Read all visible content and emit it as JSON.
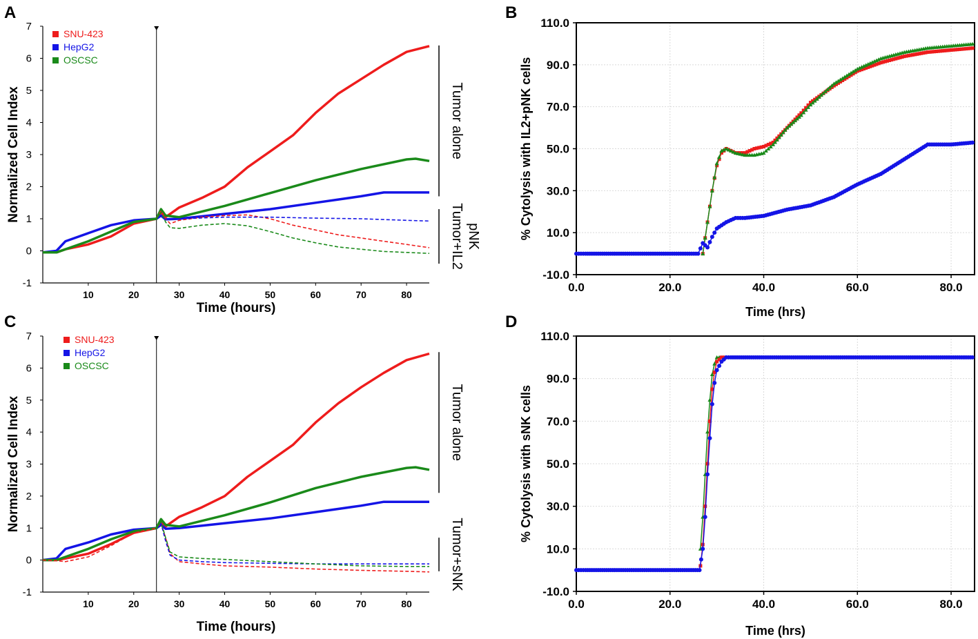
{
  "colors": {
    "red": "#ee1c1c",
    "blue": "#1414e6",
    "green": "#1a8a1a",
    "axis": "#000000",
    "grid": "#d9d9d9"
  },
  "chart_data": [
    {
      "panel": "A",
      "type": "line",
      "xlabel": "Time (hours)",
      "ylabel": "Normalized Cell Index",
      "xlim": [
        0,
        85
      ],
      "ylim": [
        -1,
        7
      ],
      "xticks": [
        10,
        20,
        30,
        40,
        50,
        60,
        70,
        80
      ],
      "yticks": [
        -1,
        0,
        1,
        2,
        3,
        4,
        5,
        6,
        7
      ],
      "marker_x": 25,
      "legend": [
        "SNU-423",
        "HepG2",
        "OSCSC"
      ],
      "brackets": [
        {
          "label": "Tumor alone",
          "y1": 6.4,
          "y2": 1.7
        },
        {
          "label": "Tumor+IL2 pNK",
          "lines": [
            "Tumor+IL2",
            "pNK"
          ],
          "y1": 1.3,
          "y2": -0.4
        }
      ],
      "series": [
        {
          "name": "SNU-423",
          "color": "red",
          "style": "solid",
          "x": [
            0,
            3,
            5,
            10,
            15,
            20,
            25,
            26,
            27,
            30,
            35,
            40,
            45,
            50,
            55,
            60,
            65,
            70,
            75,
            80,
            85
          ],
          "y": [
            -0.05,
            -0.05,
            0.05,
            0.2,
            0.45,
            0.85,
            1.0,
            1.2,
            1.05,
            1.35,
            1.65,
            2.0,
            2.6,
            3.1,
            3.6,
            4.3,
            4.9,
            5.35,
            5.8,
            6.2,
            6.38
          ]
        },
        {
          "name": "HepG2",
          "color": "blue",
          "style": "solid",
          "x": [
            0,
            3,
            5,
            10,
            15,
            20,
            25,
            26,
            27,
            30,
            40,
            50,
            60,
            70,
            75,
            80,
            85
          ],
          "y": [
            -0.05,
            0.0,
            0.3,
            0.55,
            0.8,
            0.95,
            1.0,
            1.1,
            0.98,
            1.0,
            1.15,
            1.3,
            1.5,
            1.7,
            1.82,
            1.82,
            1.82
          ]
        },
        {
          "name": "OSCSC",
          "color": "green",
          "style": "solid",
          "x": [
            0,
            3,
            5,
            10,
            15,
            20,
            25,
            26,
            27,
            30,
            40,
            50,
            60,
            70,
            80,
            82,
            85
          ],
          "y": [
            -0.05,
            -0.05,
            0.05,
            0.3,
            0.6,
            0.9,
            1.0,
            1.3,
            1.1,
            1.05,
            1.4,
            1.8,
            2.2,
            2.55,
            2.85,
            2.87,
            2.8
          ]
        },
        {
          "name": "SNU-423 + IL2 pNK",
          "color": "red",
          "style": "dashed",
          "x": [
            25,
            26,
            27,
            28,
            30,
            35,
            40,
            45,
            50,
            55,
            60,
            65,
            70,
            75,
            80,
            85
          ],
          "y": [
            1.0,
            1.25,
            1.0,
            0.85,
            0.95,
            1.05,
            1.1,
            1.12,
            1.0,
            0.8,
            0.65,
            0.5,
            0.4,
            0.3,
            0.2,
            0.1
          ]
        },
        {
          "name": "HepG2 + IL2 pNK",
          "color": "blue",
          "style": "dashed",
          "x": [
            25,
            26,
            27,
            30,
            40,
            50,
            60,
            70,
            80,
            85
          ],
          "y": [
            1.0,
            1.1,
            1.0,
            1.0,
            1.05,
            1.05,
            1.02,
            1.0,
            0.95,
            0.93
          ]
        },
        {
          "name": "OSCSC + IL2 pNK",
          "color": "green",
          "style": "dashed",
          "x": [
            25,
            26,
            27,
            28,
            30,
            35,
            40,
            45,
            50,
            55,
            60,
            65,
            70,
            75,
            80,
            85
          ],
          "y": [
            1.0,
            1.2,
            0.9,
            0.72,
            0.7,
            0.8,
            0.85,
            0.78,
            0.6,
            0.4,
            0.25,
            0.12,
            0.05,
            -0.02,
            -0.05,
            -0.08
          ]
        }
      ]
    },
    {
      "panel": "B",
      "type": "line",
      "xlabel": "Time (hrs)",
      "ylabel": "% Cytolysis with IL2+pNK cells",
      "xlim": [
        0,
        85
      ],
      "ylim": [
        -10,
        110
      ],
      "xticks": [
        "0.0",
        "20.0",
        "40.0",
        "60.0",
        "80.0"
      ],
      "yticks": [
        "-10.0",
        "10.0",
        "30.0",
        "50.0",
        "70.0",
        "90.0",
        "110.0"
      ],
      "series": [
        {
          "name": "SNU-423",
          "color": "red",
          "style": "markers",
          "x": [
            27,
            28,
            29,
            30,
            31,
            32,
            34,
            36,
            38,
            40,
            42,
            45,
            48,
            50,
            55,
            60,
            65,
            70,
            75,
            80,
            85
          ],
          "y": [
            0,
            15,
            30,
            42,
            48,
            50,
            48,
            48,
            50,
            51,
            53,
            60,
            67,
            72,
            80,
            87,
            91,
            94,
            96,
            97,
            98
          ]
        },
        {
          "name": "OSCSC",
          "color": "green",
          "style": "markers",
          "x": [
            27,
            28,
            29,
            30,
            31,
            32,
            34,
            36,
            38,
            40,
            42,
            45,
            48,
            50,
            55,
            60,
            65,
            70,
            75,
            80,
            85
          ],
          "y": [
            0,
            15,
            30,
            43,
            49,
            50,
            48,
            47,
            47,
            48,
            52,
            60,
            66,
            71,
            81,
            88,
            93,
            96,
            98,
            99,
            100
          ]
        },
        {
          "name": "HepG2",
          "color": "blue",
          "style": "markers",
          "x": [
            0,
            2,
            10,
            20,
            26,
            27,
            28,
            29,
            30,
            32,
            34,
            36,
            40,
            45,
            50,
            55,
            60,
            65,
            70,
            75,
            80,
            85
          ],
          "y": [
            0,
            0,
            0,
            0,
            0,
            5,
            3,
            8,
            12,
            15,
            17,
            17,
            18,
            21,
            23,
            27,
            33,
            38,
            45,
            52,
            52,
            53
          ]
        }
      ]
    },
    {
      "panel": "C",
      "type": "line",
      "xlabel": "Time (hours)",
      "ylabel": "Normalized Cell Index",
      "xlim": [
        0,
        85
      ],
      "ylim": [
        -1,
        7
      ],
      "xticks": [
        10,
        20,
        30,
        40,
        50,
        60,
        70,
        80
      ],
      "yticks": [
        -1,
        0,
        1,
        2,
        3,
        4,
        5,
        6,
        7
      ],
      "marker_x": 25,
      "legend": [
        "SNU-423",
        "HepG2",
        "OSCSC"
      ],
      "brackets": [
        {
          "label": "Tumor alone",
          "y1": 6.5,
          "y2": 2.1
        },
        {
          "label": "Tumor+sNK",
          "lines": [
            "Tumor+sNK"
          ],
          "y1": 0.7,
          "y2": -0.35
        }
      ],
      "series": [
        {
          "name": "SNU-423",
          "color": "red",
          "style": "solid",
          "x": [
            0,
            3,
            5,
            10,
            15,
            20,
            25,
            26,
            27,
            30,
            35,
            40,
            45,
            50,
            55,
            60,
            65,
            70,
            75,
            80,
            85
          ],
          "y": [
            0.0,
            0.0,
            0.05,
            0.2,
            0.5,
            0.85,
            1.0,
            1.2,
            1.05,
            1.35,
            1.65,
            2.0,
            2.6,
            3.1,
            3.6,
            4.3,
            4.9,
            5.4,
            5.85,
            6.25,
            6.45
          ]
        },
        {
          "name": "HepG2",
          "color": "blue",
          "style": "solid",
          "x": [
            0,
            3,
            5,
            10,
            15,
            20,
            25,
            26,
            27,
            30,
            40,
            50,
            60,
            70,
            75,
            80,
            85
          ],
          "y": [
            0.0,
            0.05,
            0.35,
            0.55,
            0.8,
            0.95,
            1.0,
            1.1,
            0.98,
            1.0,
            1.15,
            1.3,
            1.5,
            1.7,
            1.82,
            1.82,
            1.82
          ]
        },
        {
          "name": "OSCSC",
          "color": "green",
          "style": "solid",
          "x": [
            0,
            3,
            5,
            10,
            15,
            20,
            25,
            26,
            27,
            30,
            40,
            50,
            60,
            70,
            80,
            82,
            85
          ],
          "y": [
            0.0,
            0.0,
            0.1,
            0.35,
            0.65,
            0.9,
            1.0,
            1.28,
            1.1,
            1.05,
            1.4,
            1.8,
            2.25,
            2.6,
            2.88,
            2.9,
            2.82
          ]
        },
        {
          "name": "SNU-423 + sNK",
          "color": "red",
          "style": "dashed",
          "x": [
            0,
            3,
            5,
            10,
            15,
            20,
            25,
            26,
            27,
            28,
            30,
            35,
            40,
            50,
            60,
            70,
            80,
            85
          ],
          "y": [
            0.0,
            -0.02,
            -0.05,
            0.1,
            0.45,
            0.85,
            1.0,
            1.15,
            0.7,
            0.2,
            -0.05,
            -0.12,
            -0.18,
            -0.22,
            -0.28,
            -0.32,
            -0.35,
            -0.37
          ]
        },
        {
          "name": "HepG2 + sNK",
          "color": "blue",
          "style": "dashed",
          "x": [
            25,
            26,
            27,
            28,
            30,
            35,
            40,
            50,
            60,
            70,
            80,
            85
          ],
          "y": [
            1.0,
            1.15,
            0.6,
            0.15,
            0.0,
            -0.05,
            -0.08,
            -0.1,
            -0.12,
            -0.12,
            -0.12,
            -0.12
          ]
        },
        {
          "name": "OSCSC + sNK",
          "color": "green",
          "style": "dashed",
          "x": [
            25,
            26,
            27,
            28,
            30,
            35,
            40,
            50,
            60,
            70,
            80,
            85
          ],
          "y": [
            1.0,
            1.2,
            0.7,
            0.25,
            0.1,
            0.05,
            0.02,
            -0.05,
            -0.12,
            -0.18,
            -0.2,
            -0.2
          ]
        }
      ]
    },
    {
      "panel": "D",
      "type": "line",
      "xlabel": "Time (hrs)",
      "ylabel": "% Cytolysis with sNK cells",
      "xlim": [
        0,
        85
      ],
      "ylim": [
        -10,
        110
      ],
      "xticks": [
        "0.0",
        "20.0",
        "40.0",
        "60.0",
        "80.0"
      ],
      "yticks": [
        "-10.0",
        "10.0",
        "30.0",
        "50.0",
        "70.0",
        "90.0",
        "110.0"
      ],
      "series": [
        {
          "name": "OSCSC",
          "color": "green",
          "style": "markers",
          "x": [
            26.5,
            27,
            27.5,
            28,
            28.5,
            29,
            29.5,
            30,
            31,
            32
          ],
          "y": [
            10,
            25,
            45,
            65,
            80,
            92,
            97,
            100,
            100,
            100
          ]
        },
        {
          "name": "SNU-423",
          "color": "red",
          "style": "markers",
          "x": [
            26.5,
            27,
            27.5,
            28,
            28.5,
            29,
            29.5,
            30,
            31,
            32
          ],
          "y": [
            2,
            12,
            30,
            50,
            70,
            85,
            93,
            98,
            100,
            100
          ]
        },
        {
          "name": "HepG2",
          "color": "blue",
          "style": "markers",
          "x": [
            0,
            2,
            10,
            20,
            26.3,
            27,
            27.5,
            28,
            28.5,
            29,
            29.5,
            30,
            31,
            32,
            33,
            40,
            50,
            60,
            70,
            80,
            85
          ],
          "y": [
            0,
            0,
            0,
            0,
            0,
            10,
            25,
            45,
            62,
            78,
            88,
            94,
            98,
            100,
            100,
            100,
            100,
            100,
            100,
            100,
            100
          ]
        }
      ]
    }
  ]
}
